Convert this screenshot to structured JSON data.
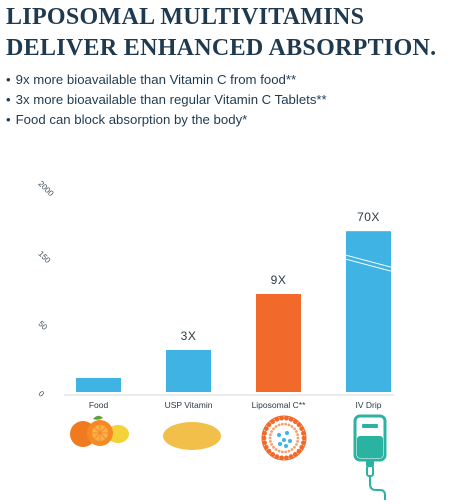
{
  "header": {
    "line1": "LIPOSOMAL MULTIVITAMINS",
    "line2": "DELIVER ENHANCED ABSORPTION."
  },
  "bullets": [
    "9x more bioavailable than Vitamin C from food**",
    "3x more bioavailable than regular Vitamin C Tablets**",
    "Food can block absorption by the body*"
  ],
  "chart_data": {
    "type": "bar",
    "categories": [
      "Food",
      "USP Vitamin",
      "Liposomal C**",
      "IV Drip"
    ],
    "values": [
      10,
      30,
      90,
      700
    ],
    "data_labels": [
      "",
      "3X",
      "9X",
      "70X"
    ],
    "yticks": [
      "0",
      "50",
      "150",
      "2000"
    ],
    "colors": [
      "#3fb3e3",
      "#3fb3e3",
      "#f26a2b",
      "#3fb3e3"
    ],
    "axis_break_on_bar": "IV Drip",
    "grid": false,
    "legend": "none"
  },
  "icons": [
    "orange-fruit-icon",
    "tablet-icon",
    "liposome-icon",
    "iv-bag-icon"
  ],
  "colors": {
    "text": "#1f3a4f",
    "blue": "#3fb3e3",
    "orange": "#f26a2b",
    "teal": "#2bb3a2"
  }
}
